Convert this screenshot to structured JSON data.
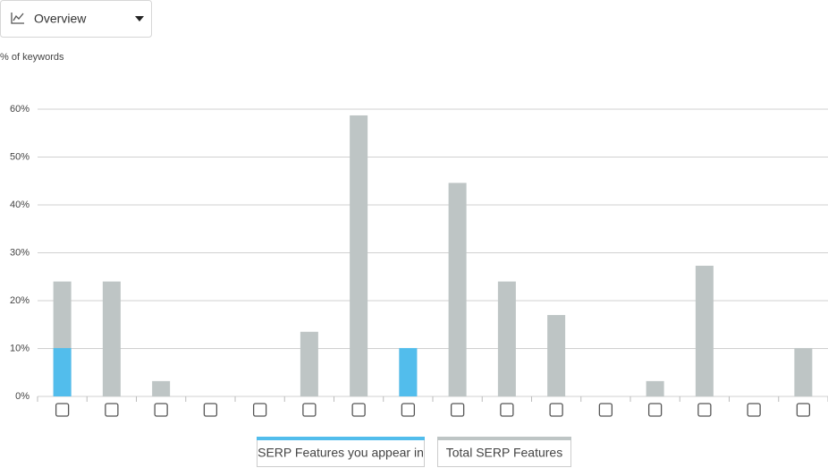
{
  "dropdown": {
    "label": "Overview"
  },
  "chart_data": {
    "type": "bar",
    "y_label": "% of keywords",
    "categories": [
      null,
      null,
      null,
      null,
      null,
      null,
      null,
      null,
      null,
      null,
      null,
      null,
      null,
      null,
      null,
      null
    ],
    "series": [
      {
        "name": "SERP Features you appear in",
        "color": "#52bdec",
        "values": [
          10.1,
          0,
          0,
          0,
          0,
          0,
          0,
          10.1,
          0,
          0,
          0,
          0,
          0,
          0,
          0,
          0
        ]
      },
      {
        "name": "Total SERP Features",
        "color": "#bec5c5",
        "values": [
          24,
          24,
          3.2,
          0,
          0,
          13.5,
          58.7,
          10.1,
          44.6,
          24,
          17,
          0,
          3.2,
          27.3,
          0,
          10.1
        ]
      }
    ],
    "ylim": [
      0,
      60
    ],
    "yticks": [
      {
        "value": 0,
        "label": "0%"
      },
      {
        "value": 10,
        "label": "10%"
      },
      {
        "value": 20,
        "label": "20%"
      },
      {
        "value": 30,
        "label": "30%"
      },
      {
        "value": 40,
        "label": "40%"
      },
      {
        "value": 50,
        "label": "50%"
      },
      {
        "value": 60,
        "label": "60%"
      }
    ],
    "grid": true
  }
}
